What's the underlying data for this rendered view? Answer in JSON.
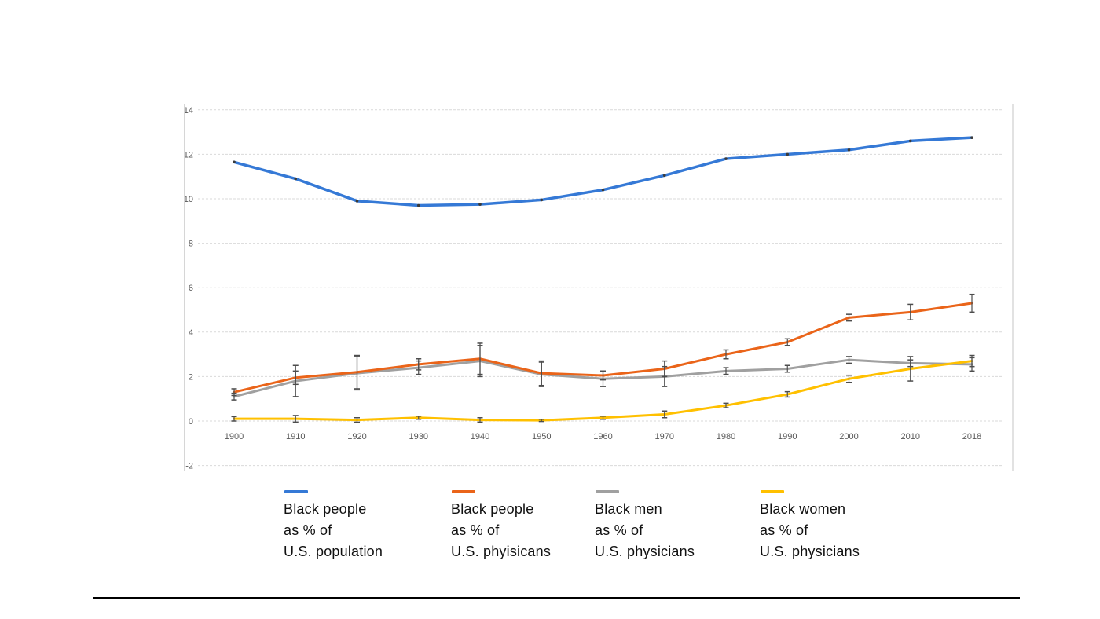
{
  "chart_data": {
    "type": "line",
    "title": "",
    "xlabel": "",
    "ylabel": "",
    "categories": [
      "1900",
      "1910",
      "1920",
      "1930",
      "1940",
      "1950",
      "1960",
      "1970",
      "1980",
      "1990",
      "2000",
      "2010",
      "2018"
    ],
    "y_ticks": [
      14,
      12,
      10,
      8,
      6,
      4,
      2,
      0,
      -2
    ],
    "ylim": [
      -2,
      14
    ],
    "grid": true,
    "legend_position": "bottom",
    "error_bar_color": "#4d4d4d",
    "grid_color": "#d9d9d9",
    "axis_border_color": "#c8c8c8",
    "tick_label_color": "#595959",
    "series": [
      {
        "name": "Black people as % of U.S. population",
        "color": "#3579d6",
        "marker_color": "#3a3a3a",
        "values": [
          11.65,
          10.9,
          9.9,
          9.7,
          9.75,
          9.95,
          10.4,
          11.05,
          11.8,
          12.0,
          12.2,
          12.6,
          12.75
        ],
        "errors": null
      },
      {
        "name": "Black people as % of U.S. phyisicans",
        "color": "#ea6419",
        "marker_color": "#4d4d4d",
        "values": [
          1.3,
          1.95,
          2.2,
          2.55,
          2.8,
          2.15,
          2.05,
          2.35,
          3.0,
          3.55,
          4.65,
          4.9,
          5.3
        ],
        "errors": [
          0.15,
          0.3,
          0.75,
          0.25,
          0.7,
          0.55,
          0.2,
          0.35,
          0.2,
          0.15,
          0.15,
          0.35,
          0.4
        ]
      },
      {
        "name": "Black men as % of U.S. physicians",
        "color": "#a0a0a0",
        "marker_color": "#4d4d4d",
        "values": [
          1.1,
          1.8,
          2.15,
          2.4,
          2.7,
          2.1,
          1.9,
          2.0,
          2.25,
          2.35,
          2.75,
          2.6,
          2.55
        ],
        "errors": [
          0.15,
          0.7,
          0.75,
          0.3,
          0.7,
          0.55,
          0.35,
          0.45,
          0.15,
          0.15,
          0.15,
          0.15,
          0.3
        ]
      },
      {
        "name": "Black women as % of U.S. physicians",
        "color": "#ffc000",
        "marker_color": "#4d4d4d",
        "values": [
          0.1,
          0.1,
          0.05,
          0.15,
          0.05,
          0.03,
          0.15,
          0.3,
          0.7,
          1.2,
          1.9,
          2.35,
          2.7
        ],
        "errors": [
          0.1,
          0.15,
          0.1,
          0.07,
          0.1,
          0.05,
          0.07,
          0.15,
          0.1,
          0.12,
          0.16,
          0.55,
          0.25
        ]
      }
    ]
  },
  "legend": {
    "items": [
      {
        "color": "#3579d6",
        "label_lines": [
          "Black people",
          "as % of",
          "U.S. population"
        ]
      },
      {
        "color": "#ea6419",
        "label_lines": [
          "Black people",
          "as % of",
          "U.S. phyisicans"
        ]
      },
      {
        "color": "#a0a0a0",
        "label_lines": [
          "Black men",
          "as % of",
          "U.S. physicians"
        ]
      },
      {
        "color": "#ffc000",
        "label_lines": [
          "Black women",
          "as % of",
          "U.S. physicians"
        ]
      }
    ]
  }
}
